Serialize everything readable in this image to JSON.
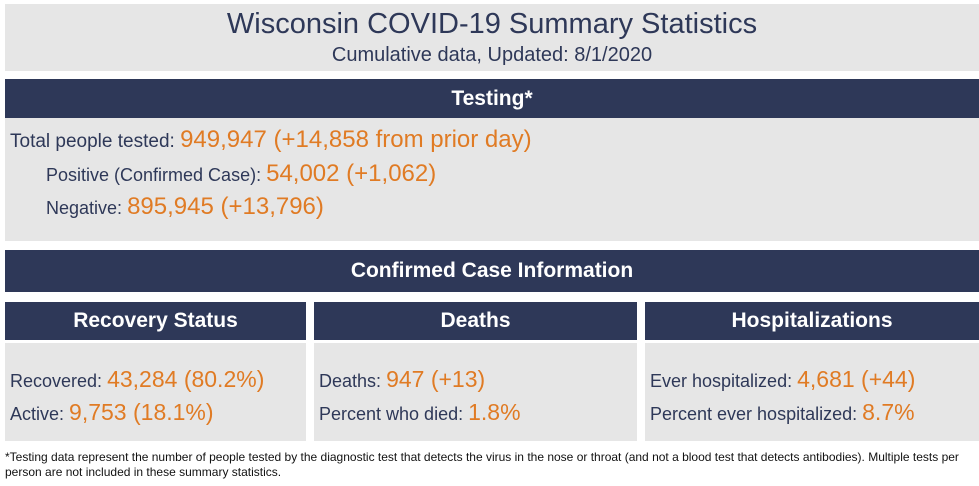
{
  "header": {
    "title": "Wisconsin COVID-19 Summary Statistics",
    "subtitle": "Cumulative data, Updated: 8/1/2020"
  },
  "testing": {
    "heading": "Testing*",
    "total_label": "Total people tested:",
    "total_value": "949,947 (+14,858 from prior day)",
    "positive_label": "Positive (Confirmed Case):",
    "positive_value": "54,002 (+1,062)",
    "negative_label": "Negative:",
    "negative_value": "895,945 (+13,796)"
  },
  "confirmed": {
    "heading": "Confirmed Case Information"
  },
  "recovery": {
    "heading": "Recovery Status",
    "recovered_label": "Recovered:",
    "recovered_value": "43,284 (80.2%)",
    "active_label": "Active:",
    "active_value": "9,753 (18.1%)"
  },
  "deaths": {
    "heading": "Deaths",
    "deaths_label": "Deaths:",
    "deaths_value": "947 (+13)",
    "percent_label": "Percent who died:",
    "percent_value": "1.8%"
  },
  "hospitalizations": {
    "heading": "Hospitalizations",
    "ever_label": "Ever hospitalized:",
    "ever_value": "4,681 (+44)",
    "percent_label": "Percent ever hospitalized:",
    "percent_value": "8.7%"
  },
  "footnote": "*Testing data represent the number of people tested by the diagnostic test that detects the virus in the nose or throat (and not a blood test that detects antibodies). Multiple tests per person are not included in these summary statistics.",
  "colors": {
    "navy": "#2e3858",
    "orange": "#e07b24",
    "panel": "#e6e6e6"
  }
}
